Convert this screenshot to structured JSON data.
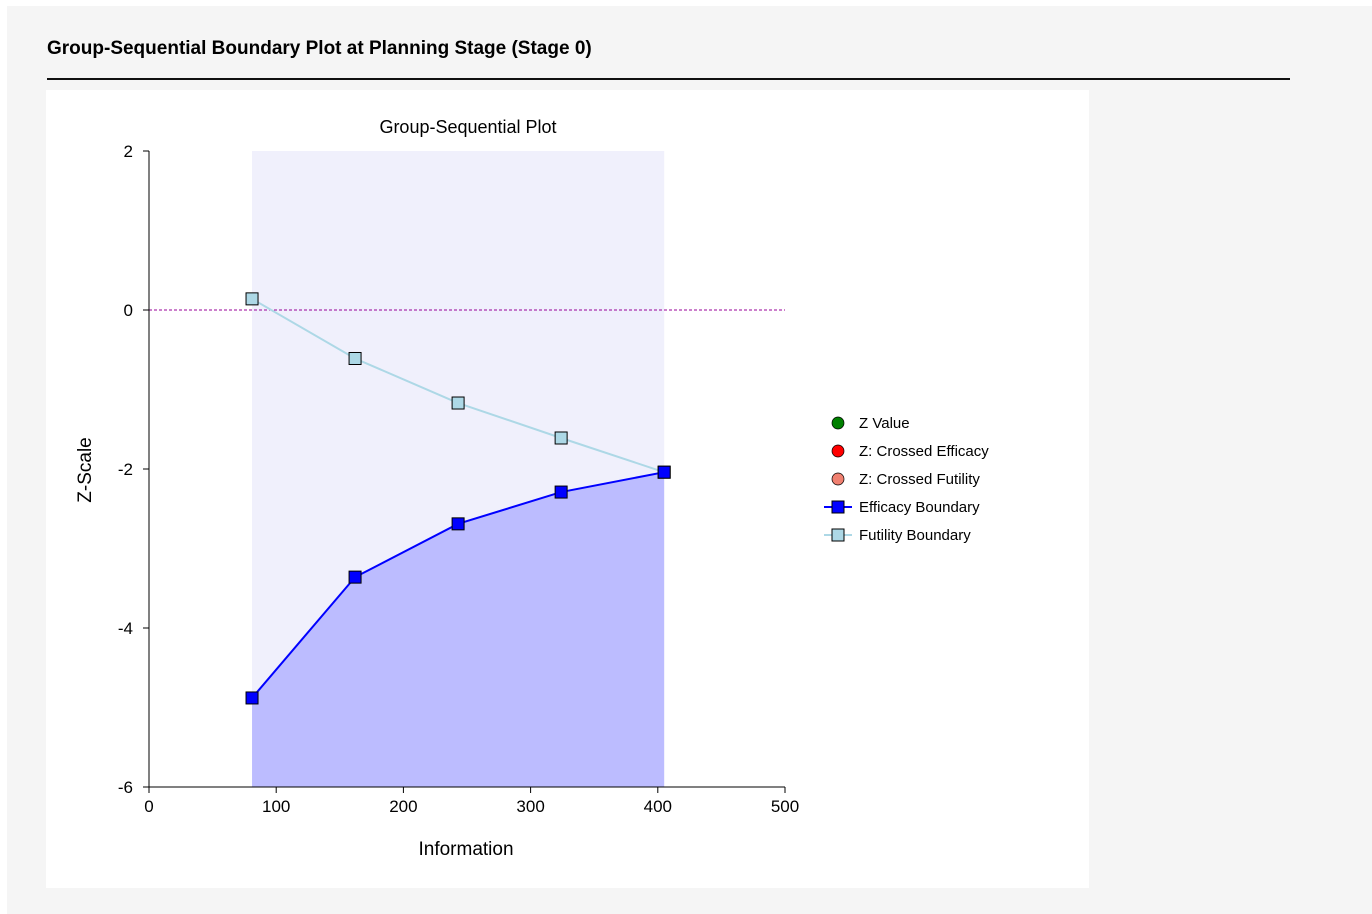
{
  "report": {
    "title": "Group-Sequential Boundary Plot at Planning Stage (Stage 0)"
  },
  "chart_data": {
    "type": "line",
    "title": "Group-Sequential Plot",
    "xlabel": "Information",
    "ylabel": "Z-Scale",
    "xlim": [
      0,
      500
    ],
    "ylim": [
      -6,
      2
    ],
    "xticks": [
      0,
      100,
      200,
      300,
      400,
      500
    ],
    "yticks": [
      -6,
      -4,
      -2,
      0,
      2
    ],
    "reference_line_y": 0,
    "grid": false,
    "legend_position": "right",
    "shaded_region": {
      "x_from": 81,
      "x_to": 405
    },
    "series": [
      {
        "name": "Z Value",
        "kind": "point",
        "color": "#008000",
        "x": [],
        "y": []
      },
      {
        "name": "Z: Crossed Efficacy",
        "kind": "point",
        "color": "#ff0000",
        "x": [],
        "y": []
      },
      {
        "name": "Z: Crossed Futility",
        "kind": "point",
        "color": "#f08070",
        "x": [],
        "y": []
      },
      {
        "name": "Efficacy Boundary",
        "kind": "line-square",
        "color": "#0000ff",
        "fill": "#bcbcff",
        "x": [
          81,
          162,
          243,
          324,
          405
        ],
        "y": [
          -4.88,
          -3.36,
          -2.69,
          -2.29,
          -2.04
        ]
      },
      {
        "name": "Futility Boundary",
        "kind": "line-square",
        "color": "#add8e6",
        "fill": "#f0f0fc",
        "x": [
          81,
          162,
          243,
          324,
          405
        ],
        "y": [
          0.14,
          -0.61,
          -1.17,
          -1.61,
          -2.04
        ]
      }
    ]
  }
}
